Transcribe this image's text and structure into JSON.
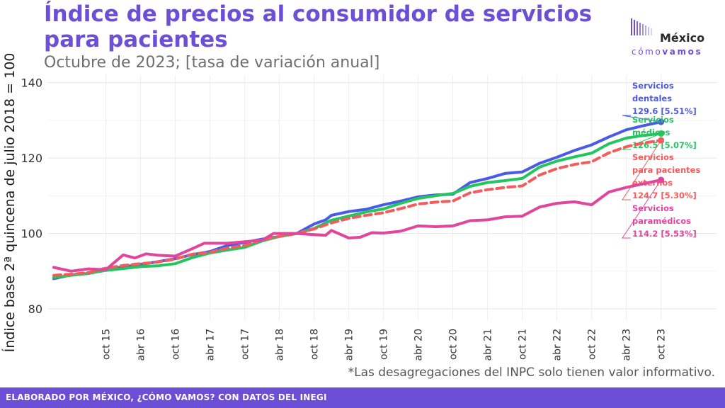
{
  "title": "Índice de precios al consumidor de servicios para pacientes",
  "subtitle": "Octubre de 2023; [tasa de variación anual]",
  "logo": {
    "line1": "México",
    "line2_a": "cómo",
    "line2_b": "vamos"
  },
  "footnote": "*Las desagregaciones del INPC solo tienen valor informativo.",
  "footer": "ELABORADO POR MÉXICO, ¿CÓMO VAMOS? CON DATOS DEL INEGI",
  "chart_data": {
    "type": "line",
    "ylabel": "Índice base 2ª quincena de julio 2018 = 100",
    "xlabel": "",
    "ylim": [
      77,
      142
    ],
    "yticks": [
      80,
      100,
      120,
      140
    ],
    "xlim": [
      "2015-01",
      "2023-12"
    ],
    "xtick_labels": [
      "oct 15",
      "abr 16",
      "oct 16",
      "abr 17",
      "oct 17",
      "abr 18",
      "oct 18",
      "abr 19",
      "oct 19",
      "abr 20",
      "oct 20",
      "abr 21",
      "oct 21",
      "abr 22",
      "oct 22",
      "abr 23",
      "oct 23"
    ],
    "xtick_dates": [
      "2015-10",
      "2016-04",
      "2016-10",
      "2017-04",
      "2017-10",
      "2018-04",
      "2018-10",
      "2019-04",
      "2019-10",
      "2020-04",
      "2020-10",
      "2021-04",
      "2021-10",
      "2022-04",
      "2022-10",
      "2023-04",
      "2023-10"
    ],
    "grid": true,
    "series": [
      {
        "color": "#4a5ae8",
        "dashed": false,
        "label_lines": [
          "Servicios",
          "dentales",
          "129.6 [5.51%]"
        ],
        "points": [
          [
            "2015-01",
            88.0
          ],
          [
            "2015-04",
            89.0
          ],
          [
            "2015-07",
            89.4
          ],
          [
            "2015-10",
            90.5
          ],
          [
            "2016-01",
            91.1
          ],
          [
            "2016-04",
            91.8
          ],
          [
            "2016-07",
            92.5
          ],
          [
            "2016-10",
            93.3
          ],
          [
            "2017-01",
            94.4
          ],
          [
            "2017-04",
            95.2
          ],
          [
            "2017-07",
            96.8
          ],
          [
            "2017-10",
            97.6
          ],
          [
            "2018-01",
            98.5
          ],
          [
            "2018-04",
            99.2
          ],
          [
            "2018-07",
            100.0
          ],
          [
            "2018-10",
            102.5
          ],
          [
            "2018-12",
            103.6
          ],
          [
            "2019-01",
            104.8
          ],
          [
            "2019-04",
            105.8
          ],
          [
            "2019-07",
            106.4
          ],
          [
            "2019-10",
            107.6
          ],
          [
            "2020-01",
            108.6
          ],
          [
            "2020-04",
            109.7
          ],
          [
            "2020-07",
            110.2
          ],
          [
            "2020-10",
            110.4
          ],
          [
            "2021-01",
            113.5
          ],
          [
            "2021-04",
            114.6
          ],
          [
            "2021-07",
            115.9
          ],
          [
            "2021-10",
            116.3
          ],
          [
            "2022-01",
            118.6
          ],
          [
            "2022-04",
            120.2
          ],
          [
            "2022-07",
            122.0
          ],
          [
            "2022-10",
            123.5
          ],
          [
            "2023-01",
            125.6
          ],
          [
            "2023-04",
            127.5
          ],
          [
            "2023-07",
            128.6
          ],
          [
            "2023-10",
            129.6
          ]
        ]
      },
      {
        "color": "#22c55e",
        "dashed": false,
        "label_lines": [
          "Servicios",
          "médicos",
          "126.5 [5.07%]"
        ],
        "points": [
          [
            "2015-01",
            88.3
          ],
          [
            "2015-04",
            88.9
          ],
          [
            "2015-07",
            89.4
          ],
          [
            "2015-10",
            90.2
          ],
          [
            "2016-01",
            90.7
          ],
          [
            "2016-04",
            91.2
          ],
          [
            "2016-07",
            91.4
          ],
          [
            "2016-10",
            92.0
          ],
          [
            "2017-01",
            93.6
          ],
          [
            "2017-04",
            94.8
          ],
          [
            "2017-07",
            95.6
          ],
          [
            "2017-10",
            96.3
          ],
          [
            "2018-01",
            98.0
          ],
          [
            "2018-04",
            99.2
          ],
          [
            "2018-07",
            100.0
          ],
          [
            "2018-10",
            101.3
          ],
          [
            "2019-01",
            103.5
          ],
          [
            "2019-04",
            104.6
          ],
          [
            "2019-07",
            105.7
          ],
          [
            "2019-10",
            106.5
          ],
          [
            "2020-01",
            108.0
          ],
          [
            "2020-04",
            109.3
          ],
          [
            "2020-07",
            110.0
          ],
          [
            "2020-10",
            110.6
          ],
          [
            "2021-01",
            112.5
          ],
          [
            "2021-04",
            113.5
          ],
          [
            "2021-07",
            114.0
          ],
          [
            "2021-10",
            114.6
          ],
          [
            "2022-01",
            117.6
          ],
          [
            "2022-04",
            119.2
          ],
          [
            "2022-07",
            120.3
          ],
          [
            "2022-10",
            121.3
          ],
          [
            "2023-01",
            123.8
          ],
          [
            "2023-04",
            125.3
          ],
          [
            "2023-07",
            126.0
          ],
          [
            "2023-10",
            126.5
          ]
        ]
      },
      {
        "color": "#f25c5c",
        "dashed": true,
        "label_lines": [
          "Servicios",
          "para pacientes",
          "externos",
          "124.7 [5.30%]"
        ],
        "points": [
          [
            "2015-01",
            88.9
          ],
          [
            "2015-04",
            89.2
          ],
          [
            "2015-07",
            89.6
          ],
          [
            "2015-10",
            90.8
          ],
          [
            "2016-01",
            91.5
          ],
          [
            "2016-04",
            92.0
          ],
          [
            "2016-07",
            92.4
          ],
          [
            "2016-10",
            93.2
          ],
          [
            "2017-01",
            94.5
          ],
          [
            "2017-04",
            95.0
          ],
          [
            "2017-07",
            96.1
          ],
          [
            "2017-10",
            96.8
          ],
          [
            "2018-01",
            98.3
          ],
          [
            "2018-04",
            99.2
          ],
          [
            "2018-07",
            100.0
          ],
          [
            "2018-10",
            101.2
          ],
          [
            "2019-01",
            102.8
          ],
          [
            "2019-04",
            104.0
          ],
          [
            "2019-07",
            104.8
          ],
          [
            "2019-10",
            105.5
          ],
          [
            "2020-01",
            106.6
          ],
          [
            "2020-04",
            107.8
          ],
          [
            "2020-07",
            108.3
          ],
          [
            "2020-10",
            108.6
          ],
          [
            "2021-01",
            110.8
          ],
          [
            "2021-04",
            111.6
          ],
          [
            "2021-07",
            112.2
          ],
          [
            "2021-10",
            112.6
          ],
          [
            "2022-01",
            115.5
          ],
          [
            "2022-04",
            117.2
          ],
          [
            "2022-07",
            118.3
          ],
          [
            "2022-10",
            119.0
          ],
          [
            "2023-01",
            121.4
          ],
          [
            "2023-04",
            123.0
          ],
          [
            "2023-07",
            124.0
          ],
          [
            "2023-10",
            124.7
          ]
        ]
      },
      {
        "color": "#e0479c",
        "dashed": false,
        "label_lines": [
          "Servicios",
          "paramédicos",
          "114.2 [5.53%]"
        ],
        "points": [
          [
            "2015-01",
            91.0
          ],
          [
            "2015-04",
            90.0
          ],
          [
            "2015-07",
            90.6
          ],
          [
            "2015-10",
            90.4
          ],
          [
            "2016-01",
            94.3
          ],
          [
            "2016-03",
            93.5
          ],
          [
            "2016-05",
            94.6
          ],
          [
            "2016-07",
            94.2
          ],
          [
            "2016-10",
            94.0
          ],
          [
            "2017-01",
            96.0
          ],
          [
            "2017-03",
            97.4
          ],
          [
            "2017-07",
            97.4
          ],
          [
            "2017-10",
            97.8
          ],
          [
            "2018-01",
            98.2
          ],
          [
            "2018-03",
            100.0
          ],
          [
            "2018-07",
            100.0
          ],
          [
            "2018-10",
            99.7
          ],
          [
            "2018-12",
            99.5
          ],
          [
            "2019-01",
            100.8
          ],
          [
            "2019-04",
            98.8
          ],
          [
            "2019-06",
            99.0
          ],
          [
            "2019-08",
            100.2
          ],
          [
            "2019-10",
            100.1
          ],
          [
            "2020-01",
            100.6
          ],
          [
            "2020-04",
            102.0
          ],
          [
            "2020-07",
            101.8
          ],
          [
            "2020-10",
            102.0
          ],
          [
            "2021-01",
            103.4
          ],
          [
            "2021-04",
            103.6
          ],
          [
            "2021-07",
            104.4
          ],
          [
            "2021-10",
            104.6
          ],
          [
            "2022-01",
            107.0
          ],
          [
            "2022-04",
            108.0
          ],
          [
            "2022-07",
            108.4
          ],
          [
            "2022-10",
            107.6
          ],
          [
            "2023-01",
            111.0
          ],
          [
            "2023-04",
            112.2
          ],
          [
            "2023-07",
            113.2
          ],
          [
            "2023-10",
            114.2
          ]
        ]
      }
    ]
  }
}
